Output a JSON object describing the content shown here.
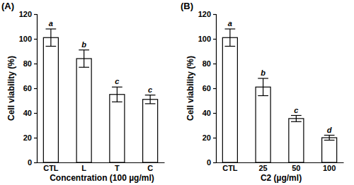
{
  "chart_data": [
    {
      "type": "bar",
      "title": "(A)",
      "xlabel": "Concentration (100 µg/ml)",
      "ylabel": "Cell viability (%)",
      "categories": [
        "CTL",
        "L",
        "T",
        "C"
      ],
      "values": [
        101,
        84,
        55,
        51
      ],
      "errors": [
        7,
        7,
        6,
        3.5
      ],
      "annotations": [
        "a",
        "b",
        "c",
        "c"
      ],
      "color": "#ffffff",
      "ylim": [
        0,
        120
      ],
      "yticks": [
        0,
        20,
        40,
        60,
        80,
        100,
        120
      ]
    },
    {
      "type": "bar",
      "title": "(B)",
      "xlabel": "C2 (µg/ml)",
      "ylabel": "Cell viability (%)",
      "categories": [
        "CTL",
        "25",
        "50",
        "100"
      ],
      "values": [
        101,
        61,
        35.5,
        20
      ],
      "errors": [
        7,
        7,
        2.5,
        2
      ],
      "annotations": [
        "a",
        "b",
        "c",
        "d"
      ],
      "color": "#ffffff",
      "ylim": [
        0,
        120
      ],
      "yticks": [
        0,
        20,
        40,
        60,
        80,
        100,
        120
      ]
    }
  ]
}
